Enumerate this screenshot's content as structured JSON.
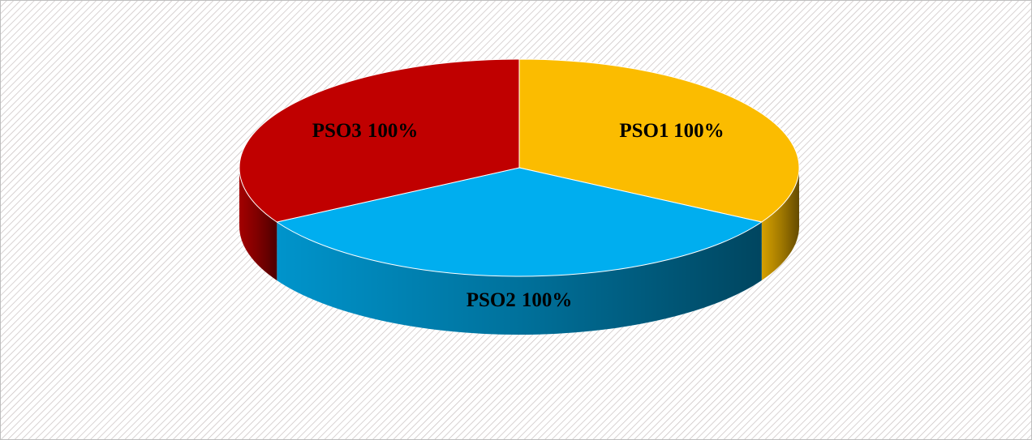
{
  "chart_data": {
    "type": "pie",
    "categories": [
      "PSO1",
      "PSO2",
      "PSO3"
    ],
    "values": [
      100,
      100,
      100
    ],
    "value_labels": [
      "100%",
      "100%",
      "100%"
    ],
    "colors": [
      "#fbbc00",
      "#00aeef",
      "#c00000"
    ]
  }
}
